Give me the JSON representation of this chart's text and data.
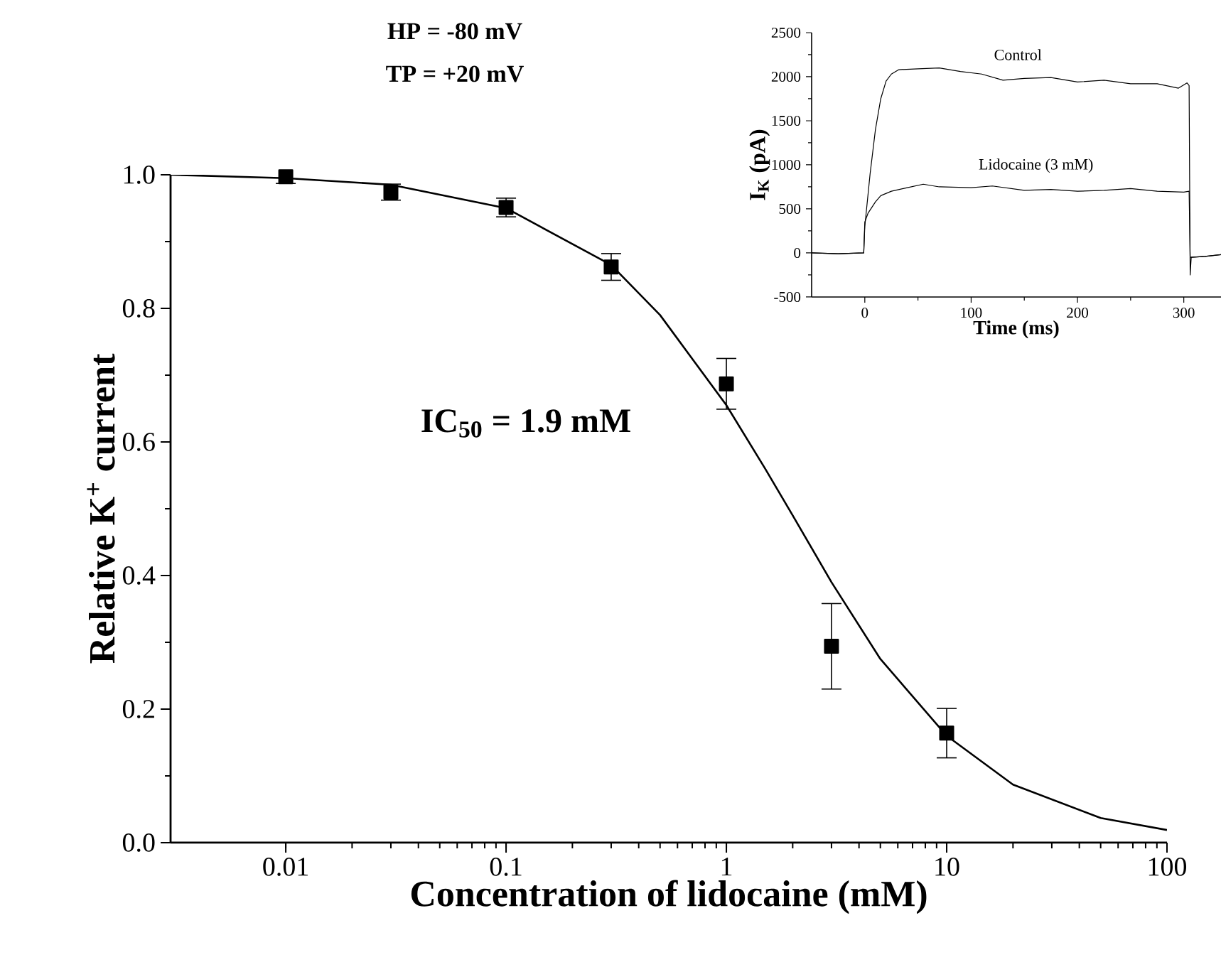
{
  "chart_data": [
    {
      "type": "scatter",
      "xlabel": "Concentration of lidocaine (mM)",
      "ylabel": "Relative K$^{+}$ current",
      "annotations": [
        "HP = -80 mV",
        "TP = +20 mV",
        "IC$_{50}$ = 1.9 mM"
      ],
      "xlim": [
        0.003,
        100
      ],
      "ylim": [
        0,
        1
      ],
      "xticks": [
        0.01,
        0.1,
        1,
        10,
        100
      ],
      "yticks": [
        {
          "value": 0,
          "label": "0.0"
        },
        0.2,
        0.4,
        0.6,
        0.8,
        {
          "value": 1,
          "label": "1.0"
        }
      ],
      "log": "x",
      "marker": "square",
      "series": [
        {
          "color": "#000000",
          "x": [
            0.01,
            0.03,
            0.1,
            0.3,
            1,
            3,
            10
          ],
          "values": [
            0.997,
            0.974,
            0.951,
            0.862,
            0.687,
            0.294,
            0.164
          ],
          "errors": [
            0.01,
            0.012,
            0.014,
            0.02,
            0.038,
            0.064,
            0.037
          ]
        },
        {
          "type": "line",
          "marker": "none",
          "color": "#000000",
          "x": [
            0.003,
            0.01,
            0.03,
            0.1,
            0.3,
            0.5,
            1,
            1.5,
            2,
            3,
            5,
            10,
            20,
            50,
            100
          ],
          "values": [
            1.0,
            0.995,
            0.985,
            0.95,
            0.865,
            0.79,
            0.655,
            0.56,
            0.49,
            0.39,
            0.275,
            0.16,
            0.087,
            0.037,
            0.019
          ]
        }
      ]
    },
    {
      "type": "line",
      "xlabel": "Time (ms)",
      "ylabel": "I$_{K}$ (pA)",
      "xlim": [
        -50,
        335
      ],
      "ylim": [
        -500,
        2500
      ],
      "xticks": [
        0,
        100,
        200,
        300
      ],
      "yticks": [
        -500,
        0,
        500,
        1000,
        1500,
        2000,
        2500
      ],
      "marker": "none",
      "series": [
        {
          "name": "Control",
          "color": "#000000",
          "x": [
            -50,
            -25,
            -1,
            0,
            5,
            10,
            15,
            20,
            25,
            32,
            50,
            70,
            90,
            110,
            130,
            150,
            175,
            200,
            225,
            250,
            275,
            295,
            303,
            305,
            306,
            307,
            320,
            335
          ],
          "values": [
            0,
            -10,
            0,
            300,
            900,
            1400,
            1750,
            1950,
            2030,
            2080,
            2090,
            2100,
            2060,
            2030,
            1960,
            1980,
            1990,
            1940,
            1960,
            1920,
            1920,
            1870,
            1930,
            1900,
            -250,
            -50,
            -40,
            -20
          ]
        },
        {
          "name": "Lidocaine (3 mM)",
          "color": "#000000",
          "x": [
            -50,
            -25,
            -1,
            0,
            3,
            10,
            15,
            25,
            40,
            55,
            70,
            100,
            120,
            150,
            175,
            200,
            225,
            250,
            275,
            300,
            305,
            306,
            320,
            335
          ],
          "values": [
            0,
            -10,
            0,
            350,
            450,
            580,
            650,
            700,
            740,
            780,
            750,
            740,
            760,
            710,
            720,
            700,
            710,
            730,
            700,
            690,
            700,
            -50,
            -40,
            -20
          ]
        }
      ]
    }
  ]
}
